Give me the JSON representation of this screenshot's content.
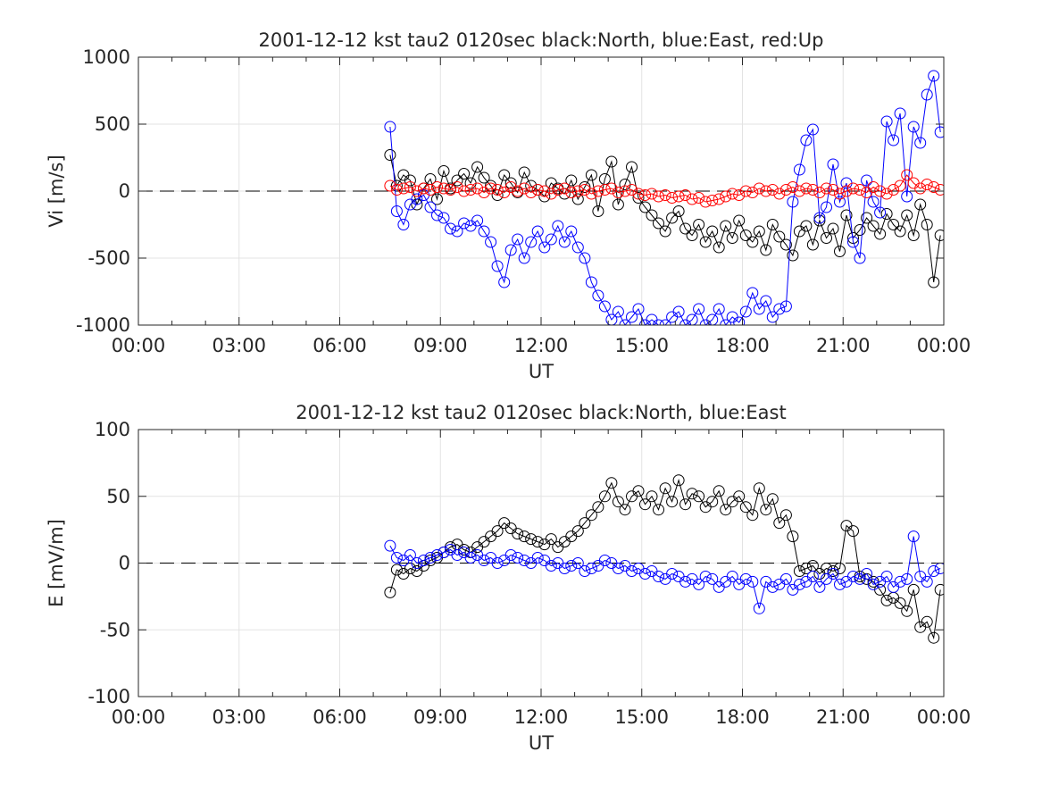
{
  "chart_data": [
    {
      "type": "scatter",
      "title": "2001-12-12 kst tau2 0120sec black:North, blue:East, red:Up",
      "xlabel": "UT",
      "ylabel": "Vi [m/s]",
      "xlim": [
        0,
        24
      ],
      "ylim": [
        -1000,
        1000
      ],
      "x_tick_labels": [
        "00:00",
        "03:00",
        "06:00",
        "09:00",
        "12:00",
        "15:00",
        "18:00",
        "21:00",
        "00:00"
      ],
      "y_tick_labels": [
        "1000",
        "500",
        "0",
        "-500",
        "-1000"
      ],
      "grid": true,
      "reference_line": 0,
      "series": [
        {
          "color": "#000000",
          "x": [
            7.5,
            7.7,
            7.9,
            8.1,
            8.3,
            8.5,
            8.7,
            8.9,
            9.1,
            9.3,
            9.5,
            9.7,
            9.9,
            10.1,
            10.3,
            10.5,
            10.7,
            10.9,
            11.1,
            11.3,
            11.5,
            11.7,
            11.9,
            12.1,
            12.3,
            12.5,
            12.7,
            12.9,
            13.1,
            13.3,
            13.5,
            13.7,
            13.9,
            14.1,
            14.3,
            14.5,
            14.7,
            14.9,
            15.1,
            15.3,
            15.5,
            15.7,
            15.9,
            16.1,
            16.3,
            16.5,
            16.7,
            16.9,
            17.1,
            17.3,
            17.5,
            17.7,
            17.9,
            18.1,
            18.3,
            18.5,
            18.7,
            18.9,
            19.1,
            19.3,
            19.5,
            19.7,
            19.9,
            20.1,
            20.3,
            20.5,
            20.7,
            20.9,
            21.1,
            21.3,
            21.5,
            21.7,
            21.9,
            22.1,
            22.3,
            22.5,
            22.7,
            22.9,
            23.1,
            23.3,
            23.5,
            23.7,
            23.9
          ],
          "y": [
            270,
            40,
            120,
            80,
            -100,
            20,
            90,
            -60,
            150,
            20,
            80,
            130,
            60,
            180,
            100,
            40,
            -30,
            120,
            60,
            -10,
            140,
            40,
            10,
            -40,
            60,
            20,
            -20,
            80,
            -60,
            30,
            120,
            -150,
            90,
            220,
            -100,
            50,
            180,
            -50,
            -120,
            -180,
            -240,
            -300,
            -200,
            -150,
            -280,
            -330,
            -250,
            -380,
            -300,
            -420,
            -260,
            -350,
            -220,
            -330,
            -380,
            -300,
            -440,
            -250,
            -340,
            -400,
            -480,
            -300,
            -260,
            -400,
            -220,
            -350,
            -280,
            -450,
            -180,
            -350,
            -290,
            -200,
            -260,
            -320,
            -170,
            -250,
            -300,
            -180,
            -330,
            -100,
            -250,
            -680,
            -330
          ]
        },
        {
          "color": "#0000ff",
          "x": [
            7.5,
            7.7,
            7.9,
            8.1,
            8.3,
            8.5,
            8.7,
            8.9,
            9.1,
            9.3,
            9.5,
            9.7,
            9.9,
            10.1,
            10.3,
            10.5,
            10.7,
            10.9,
            11.1,
            11.3,
            11.5,
            11.7,
            11.9,
            12.1,
            12.3,
            12.5,
            12.7,
            12.9,
            13.1,
            13.3,
            13.5,
            13.7,
            13.9,
            14.1,
            14.3,
            14.5,
            14.7,
            14.9,
            15.1,
            15.3,
            15.5,
            15.7,
            15.9,
            16.1,
            16.3,
            16.5,
            16.7,
            16.9,
            17.1,
            17.3,
            17.5,
            17.7,
            17.9,
            18.1,
            18.3,
            18.5,
            18.7,
            18.9,
            19.1,
            19.3,
            19.5,
            19.7,
            19.9,
            20.1,
            20.3,
            20.5,
            20.7,
            20.9,
            21.1,
            21.3,
            21.5,
            21.7,
            21.9,
            22.1,
            22.3,
            22.5,
            22.7,
            22.9,
            23.1,
            23.3,
            23.5,
            23.7,
            23.9
          ],
          "y": [
            480,
            -150,
            -250,
            -100,
            -60,
            -30,
            -120,
            -180,
            -200,
            -280,
            -300,
            -240,
            -260,
            -220,
            -300,
            -380,
            -560,
            -680,
            -440,
            -360,
            -500,
            -380,
            -300,
            -420,
            -360,
            -260,
            -380,
            -300,
            -420,
            -500,
            -680,
            -780,
            -860,
            -960,
            -900,
            -1000,
            -940,
            -880,
            -1000,
            -960,
            -1000,
            -1000,
            -940,
            -900,
            -1000,
            -960,
            -880,
            -1000,
            -960,
            -880,
            -1000,
            -940,
            -980,
            -900,
            -760,
            -880,
            -820,
            -940,
            -880,
            -860,
            -80,
            160,
            380,
            460,
            -200,
            -120,
            200,
            -80,
            60,
            -380,
            -500,
            80,
            -80,
            -160,
            520,
            380,
            580,
            -40,
            480,
            360,
            720,
            860,
            440
          ]
        },
        {
          "color": "#ff0000",
          "x": [
            7.5,
            7.7,
            7.9,
            8.1,
            8.3,
            8.5,
            8.7,
            8.9,
            9.1,
            9.3,
            9.5,
            9.7,
            9.9,
            10.1,
            10.3,
            10.5,
            10.7,
            10.9,
            11.1,
            11.3,
            11.5,
            11.7,
            11.9,
            12.1,
            12.3,
            12.5,
            12.7,
            12.9,
            13.1,
            13.3,
            13.5,
            13.7,
            13.9,
            14.1,
            14.3,
            14.5,
            14.7,
            14.9,
            15.1,
            15.3,
            15.5,
            15.7,
            15.9,
            16.1,
            16.3,
            16.5,
            16.7,
            16.9,
            17.1,
            17.3,
            17.5,
            17.7,
            17.9,
            18.1,
            18.3,
            18.5,
            18.7,
            18.9,
            19.1,
            19.3,
            19.5,
            19.7,
            19.9,
            20.1,
            20.3,
            20.5,
            20.7,
            20.9,
            21.1,
            21.3,
            21.5,
            21.7,
            21.9,
            22.1,
            22.3,
            22.5,
            22.7,
            22.9,
            23.1,
            23.3,
            23.5,
            23.7,
            23.9
          ],
          "y": [
            40,
            10,
            20,
            30,
            0,
            20,
            10,
            30,
            20,
            10,
            30,
            0,
            10,
            20,
            -10,
            20,
            10,
            -10,
            30,
            0,
            20,
            -10,
            10,
            0,
            -20,
            10,
            20,
            -10,
            0,
            10,
            -20,
            0,
            10,
            20,
            -10,
            0,
            10,
            -20,
            -30,
            -20,
            -40,
            -30,
            -50,
            -40,
            -30,
            -60,
            -50,
            -80,
            -70,
            -60,
            -40,
            -20,
            -30,
            0,
            -10,
            20,
            0,
            10,
            -20,
            10,
            30,
            0,
            20,
            10,
            -10,
            20,
            10,
            -20,
            0,
            20,
            10,
            -10,
            30,
            0,
            -20,
            10,
            40,
            120,
            60,
            20,
            50,
            30,
            10
          ]
        }
      ]
    },
    {
      "type": "scatter",
      "title": "2001-12-12 kst tau2 0120sec black:North, blue:East",
      "xlabel": "UT",
      "ylabel": "E [mV/m]",
      "xlim": [
        0,
        24
      ],
      "ylim": [
        -100,
        100
      ],
      "x_tick_labels": [
        "00:00",
        "03:00",
        "06:00",
        "09:00",
        "12:00",
        "15:00",
        "18:00",
        "21:00",
        "00:00"
      ],
      "y_tick_labels": [
        "100",
        "50",
        "0",
        "-50",
        "-100"
      ],
      "grid": true,
      "reference_line": 0,
      "series": [
        {
          "color": "#000000",
          "x": [
            7.5,
            7.7,
            7.9,
            8.1,
            8.3,
            8.5,
            8.7,
            8.9,
            9.1,
            9.3,
            9.5,
            9.7,
            9.9,
            10.1,
            10.3,
            10.5,
            10.7,
            10.9,
            11.1,
            11.3,
            11.5,
            11.7,
            11.9,
            12.1,
            12.3,
            12.5,
            12.7,
            12.9,
            13.1,
            13.3,
            13.5,
            13.7,
            13.9,
            14.1,
            14.3,
            14.5,
            14.7,
            14.9,
            15.1,
            15.3,
            15.5,
            15.7,
            15.9,
            16.1,
            16.3,
            16.5,
            16.7,
            16.9,
            17.1,
            17.3,
            17.5,
            17.7,
            17.9,
            18.1,
            18.3,
            18.5,
            18.7,
            18.9,
            19.1,
            19.3,
            19.5,
            19.7,
            19.9,
            20.1,
            20.3,
            20.5,
            20.7,
            20.9,
            21.1,
            21.3,
            21.5,
            21.7,
            21.9,
            22.1,
            22.3,
            22.5,
            22.7,
            22.9,
            23.1,
            23.3,
            23.5,
            23.7,
            23.9
          ],
          "y": [
            -22,
            -5,
            -8,
            -4,
            -6,
            -2,
            2,
            4,
            8,
            12,
            14,
            10,
            8,
            12,
            16,
            20,
            24,
            30,
            26,
            22,
            20,
            18,
            16,
            14,
            18,
            12,
            16,
            20,
            24,
            30,
            36,
            42,
            50,
            60,
            46,
            40,
            50,
            54,
            44,
            50,
            40,
            56,
            46,
            62,
            44,
            52,
            50,
            42,
            46,
            54,
            40,
            46,
            50,
            42,
            36,
            56,
            40,
            48,
            30,
            36,
            20,
            -6,
            -4,
            -2,
            -8,
            -4,
            -6,
            -4,
            28,
            24,
            -10,
            -12,
            -14,
            -20,
            -28,
            -26,
            -30,
            -36,
            -20,
            -48,
            -44,
            -56,
            -20
          ]
        },
        {
          "color": "#0000ff",
          "x": [
            7.5,
            7.7,
            7.9,
            8.1,
            8.3,
            8.5,
            8.7,
            8.9,
            9.1,
            9.3,
            9.5,
            9.7,
            9.9,
            10.1,
            10.3,
            10.5,
            10.7,
            10.9,
            11.1,
            11.3,
            11.5,
            11.7,
            11.9,
            12.1,
            12.3,
            12.5,
            12.7,
            12.9,
            13.1,
            13.3,
            13.5,
            13.7,
            13.9,
            14.1,
            14.3,
            14.5,
            14.7,
            14.9,
            15.1,
            15.3,
            15.5,
            15.7,
            15.9,
            16.1,
            16.3,
            16.5,
            16.7,
            16.9,
            17.1,
            17.3,
            17.5,
            17.7,
            17.9,
            18.1,
            18.3,
            18.5,
            18.7,
            18.9,
            19.1,
            19.3,
            19.5,
            19.7,
            19.9,
            20.1,
            20.3,
            20.5,
            20.7,
            20.9,
            21.1,
            21.3,
            21.5,
            21.7,
            21.9,
            22.1,
            22.3,
            22.5,
            22.7,
            22.9,
            23.1,
            23.3,
            23.5,
            23.7,
            23.9
          ],
          "y": [
            13,
            4,
            2,
            6,
            0,
            2,
            4,
            6,
            8,
            10,
            6,
            8,
            4,
            6,
            2,
            4,
            0,
            2,
            6,
            4,
            2,
            0,
            4,
            2,
            -2,
            0,
            -4,
            -2,
            0,
            -6,
            -4,
            -2,
            2,
            0,
            -4,
            -2,
            -6,
            -4,
            -8,
            -6,
            -10,
            -12,
            -8,
            -10,
            -14,
            -12,
            -16,
            -10,
            -12,
            -18,
            -14,
            -10,
            -16,
            -12,
            -14,
            -34,
            -14,
            -18,
            -16,
            -12,
            -20,
            -16,
            -14,
            -10,
            -18,
            -12,
            -8,
            -16,
            -14,
            -10,
            -12,
            -8,
            -16,
            -14,
            -10,
            -18,
            -14,
            -12,
            20,
            -10,
            -14,
            -6,
            -4
          ]
        }
      ]
    }
  ]
}
